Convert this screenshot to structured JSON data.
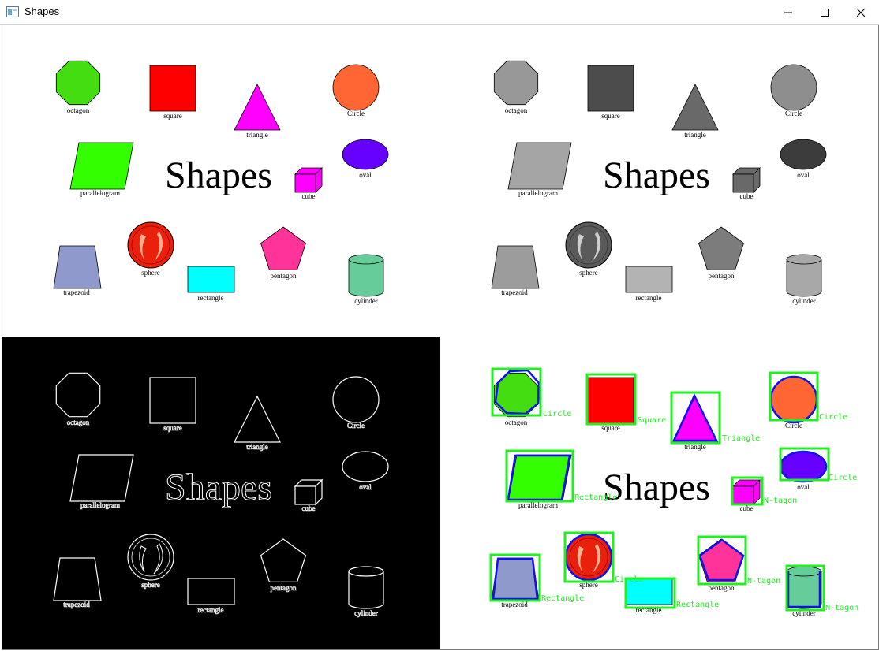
{
  "window": {
    "title": "Shapes",
    "controls": [
      "minimize",
      "maximize",
      "close"
    ]
  },
  "image": {
    "heading": "Shapes",
    "shape_labels": {
      "octagon": "octagon",
      "square": "square",
      "triangle": "triangle",
      "circle": "Circle",
      "parallelogram": "parallelogram",
      "cube": "cube",
      "oval": "oval",
      "trapezoid": "trapezoid",
      "sphere": "sphere",
      "rectangle": "rectangle",
      "pentagon": "pentagon",
      "cylinder": "cylinder"
    },
    "colors": {
      "octagon": "#44dd11",
      "square": "#ff0000",
      "triangle": "#ff00ff",
      "circle": "#ff6633",
      "parallelogram": "#33ff00",
      "cube": "#ff00ff",
      "oval": "#6600ff",
      "trapezoid": "#8f99cc",
      "sphere": "#e8200c",
      "rectangle": "#00ffff",
      "pentagon": "#ff3399",
      "cylinder": "#66cc99"
    },
    "panels": {
      "original": "color",
      "grayscale": "gray",
      "edges": "canny",
      "detected": "detection"
    },
    "detections": [
      {
        "shape": "octagon",
        "label": "Circle"
      },
      {
        "shape": "square",
        "label": "Square"
      },
      {
        "shape": "triangle",
        "label": "Triangle"
      },
      {
        "shape": "circle",
        "label": "Circle"
      },
      {
        "shape": "parallelogram",
        "label": "Rectangle"
      },
      {
        "shape": "cube",
        "label": "N-tagon"
      },
      {
        "shape": "oval",
        "label": "Circle"
      },
      {
        "shape": "trapezoid",
        "label": "Rectangle"
      },
      {
        "shape": "sphere",
        "label": "Circle"
      },
      {
        "shape": "rectangle",
        "label": "Rectangle"
      },
      {
        "shape": "pentagon",
        "label": "N-tagon"
      },
      {
        "shape": "cylinder",
        "label": "N-tagon"
      }
    ],
    "detection_colors": {
      "box": "#22ee22",
      "contour": "#1111ee",
      "label": "#22ee22"
    }
  }
}
